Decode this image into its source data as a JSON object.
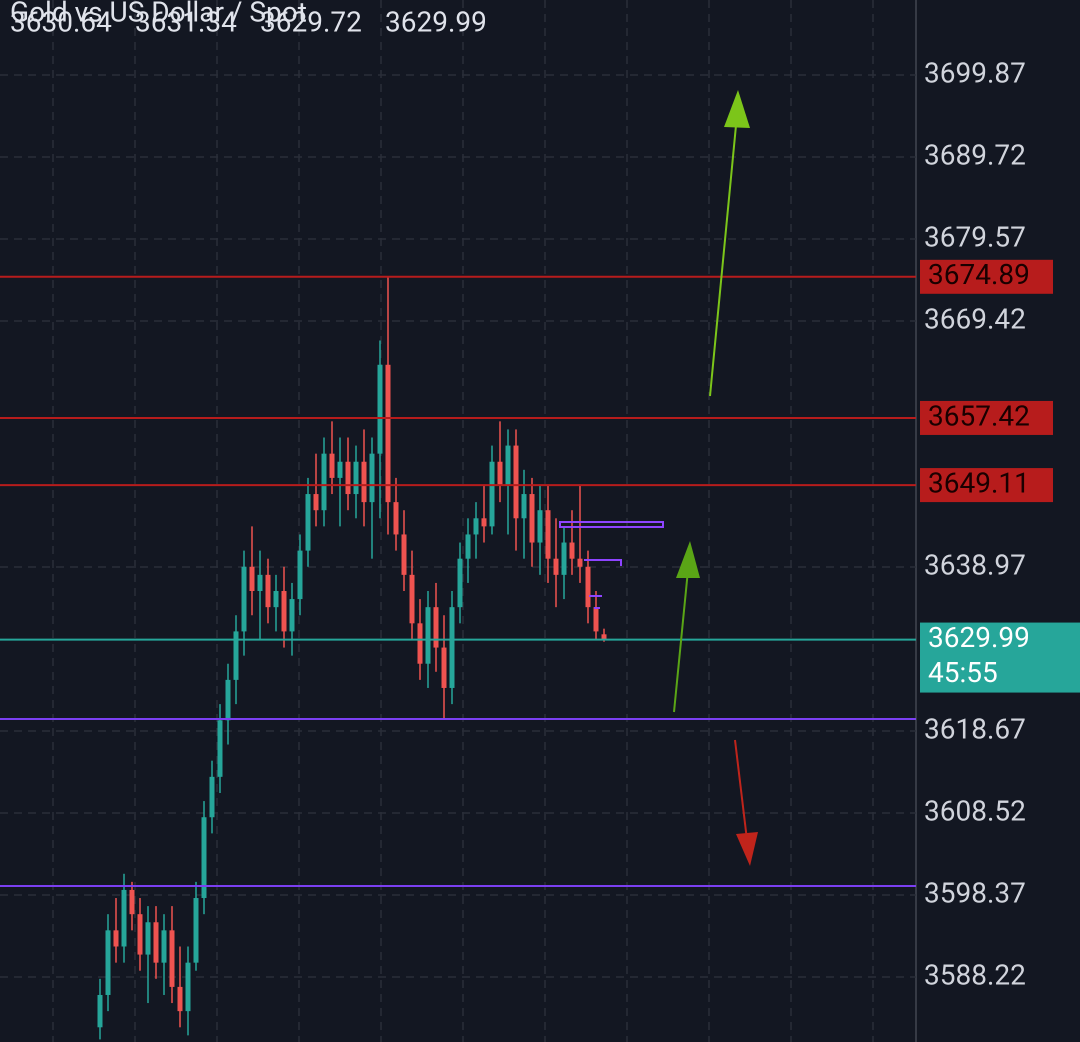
{
  "chart_data": {
    "type": "candlestick",
    "title": "Gold vs US Dollar / Spot",
    "last_ohlc": [
      3630.64,
      3631.34,
      3629.72,
      3629.99
    ],
    "ylim": [
      3580.18,
      3709.15
    ],
    "yticks": [
      3588.22,
      3598.37,
      3608.52,
      3618.67,
      3638.97,
      3669.42,
      3679.57,
      3689.72,
      3699.87
    ],
    "grid": true,
    "up_color": "#26a69a",
    "down_color": "#ef5350",
    "open": [
      3582,
      3586,
      3594,
      3592,
      3599,
      3596,
      3591,
      3595,
      3590,
      3594,
      3587,
      3584,
      3590,
      3598,
      3608,
      3613,
      3620,
      3625,
      3631,
      3639,
      3636,
      3638,
      3634,
      3636,
      3631,
      3635,
      3641,
      3648,
      3646,
      3653,
      3650,
      3652,
      3648,
      3652,
      3647,
      3653,
      3664,
      3647,
      3643,
      3638,
      3632,
      3627,
      3634,
      3629,
      3624,
      3634,
      3640,
      3643,
      3645,
      3644,
      3652,
      3649,
      3654,
      3645,
      3648,
      3642,
      3646,
      3640,
      3638,
      3642,
      3640,
      3639,
      3634,
      3630.64
    ],
    "high": [
      3588,
      3596,
      3598,
      3601,
      3600,
      3598,
      3597,
      3597,
      3596,
      3597,
      3592,
      3592,
      3600,
      3610,
      3615,
      3622,
      3627,
      3633,
      3641,
      3644,
      3641,
      3640,
      3638,
      3639,
      3637,
      3643,
      3650,
      3653,
      3655,
      3657,
      3655,
      3655,
      3654,
      3656,
      3655,
      3667,
      3674.89,
      3650,
      3646,
      3641,
      3635,
      3636,
      3637,
      3633,
      3636,
      3642,
      3645,
      3647,
      3649,
      3654,
      3657,
      3656,
      3656,
      3651,
      3650,
      3649,
      3649,
      3645,
      3644,
      3646,
      3649,
      3641,
      3636,
      3631.34
    ],
    "low": [
      3580.5,
      3584,
      3590,
      3590,
      3594,
      3589,
      3585,
      3588,
      3586,
      3585,
      3582,
      3581,
      3589,
      3596,
      3606,
      3611,
      3617,
      3622,
      3628,
      3633,
      3630,
      3632,
      3631,
      3629,
      3628,
      3633,
      3639,
      3644,
      3644,
      3648,
      3644,
      3646,
      3645,
      3644,
      3640,
      3645,
      3643,
      3641,
      3636,
      3630,
      3625,
      3624,
      3626,
      3620.2,
      3622,
      3632,
      3637,
      3640,
      3642,
      3643,
      3647,
      3643,
      3641,
      3640,
      3639,
      3638,
      3637,
      3634,
      3635,
      3638,
      3637,
      3632,
      3630,
      3629.72
    ],
    "close": [
      3586,
      3594,
      3592,
      3599,
      3596,
      3591,
      3595,
      3590,
      3594,
      3587,
      3584,
      3590,
      3598,
      3608,
      3613,
      3620,
      3625,
      3631,
      3639,
      3636,
      3638,
      3634,
      3636,
      3631,
      3635,
      3641,
      3648,
      3646,
      3653,
      3650,
      3652,
      3648,
      3652,
      3647,
      3653,
      3664,
      3647,
      3643,
      3638,
      3632,
      3627,
      3634,
      3629,
      3624,
      3634,
      3640,
      3643,
      3645,
      3644,
      3652,
      3649,
      3654,
      3645,
      3648,
      3642,
      3646,
      3640,
      3638,
      3642,
      3640,
      3639,
      3634,
      3631,
      3629.99
    ],
    "levels": [
      {
        "value": 3674.89,
        "color": "#b71c1c",
        "show_label": true
      },
      {
        "value": 3657.42,
        "color": "#b71c1c",
        "show_label": true
      },
      {
        "value": 3649.11,
        "color": "#b71c1c",
        "show_label": true
      },
      {
        "value": 3629.99,
        "color": "#26a69a",
        "show_label": true
      },
      {
        "value": 3620.16,
        "color": "#7b3ff2",
        "show_label": false
      },
      {
        "value": 3599.49,
        "color": "#7b3ff2",
        "show_label": false
      }
    ],
    "countdown": "45:55"
  }
}
